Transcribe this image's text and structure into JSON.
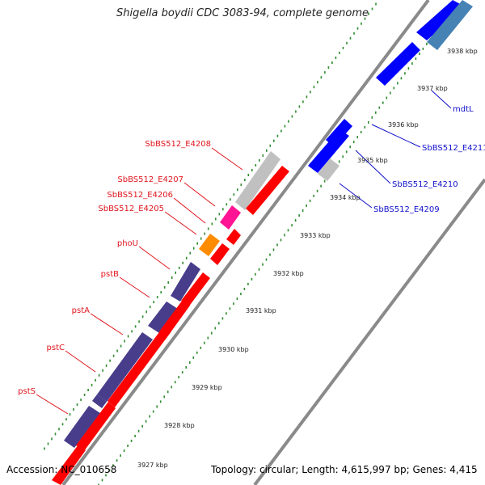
{
  "title": "Shigella boydii CDC 3083-94, complete genome",
  "footer": {
    "accession": "Accession: NC_010658",
    "summary": "Topology: circular; Length: 4,615,997 bp; Genes: 4,415"
  },
  "colors": {
    "backbone": "#8a8a8a",
    "tick_dots": "#2e8b2e",
    "left_label": "#e0151d",
    "right_label": "#1010cc",
    "red_gene": "#ff0000",
    "blue_gene": "#0000ff",
    "steel_gene": "#4682b4",
    "purple_gene": "#483d8b",
    "gray_gene": "#c0c0c0",
    "pink_gene": "#ff1493",
    "orange_gene": "#ff8c00"
  },
  "scale_labels": [
    "3927 kbp",
    "3928 kbp",
    "3929 kbp",
    "3930 kbp",
    "3931 kbp",
    "3932 kbp",
    "3933 kbp",
    "3934 kbp",
    "3935 kbp",
    "3936 kbp",
    "3937 kbp",
    "3938 kbp"
  ],
  "left_gene_labels": [
    "SbBS512_E4208",
    "SbBS512_E4207",
    "SbBS512_E4206",
    "SbBS512_E4205",
    "phoU",
    "pstB",
    "pstA",
    "pstC",
    "pstS"
  ],
  "right_gene_labels": [
    "mdtL",
    "SbBS512_E4211",
    "SbBS512_E4210",
    "SbBS512_E4209"
  ]
}
